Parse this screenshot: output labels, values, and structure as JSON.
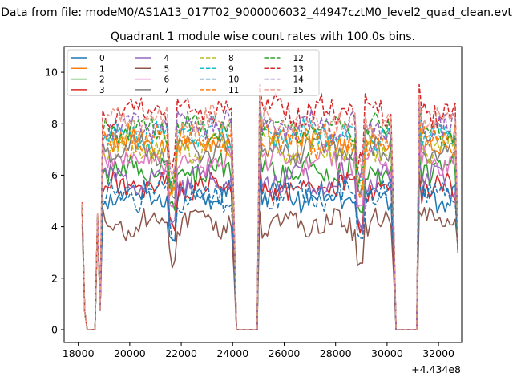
{
  "chart_data": {
    "type": "line",
    "suptitle": "Data from file: modeM0/AS1A13_017T02_9000006032_44947cztM0_level2_quad_clean.evt",
    "title": "Quadrant 1 module wise count rates with 100.0s bins.",
    "xlabel": "",
    "ylabel": "",
    "x_offset_label": "+4.434e8",
    "xlim": [
      17450,
      32900
    ],
    "ylim": [
      -0.5,
      11.0
    ],
    "x_ticks": [
      18000,
      20000,
      22000,
      24000,
      26000,
      28000,
      30000,
      32000
    ],
    "x_tick_labels": [
      "18000",
      "20000",
      "22000",
      "24000",
      "26000",
      "28000",
      "30000",
      "32000"
    ],
    "y_ticks": [
      0,
      2,
      4,
      6,
      8,
      10
    ],
    "y_tick_labels": [
      "0",
      "2",
      "4",
      "6",
      "8",
      "10"
    ],
    "grid": false,
    "legend": {
      "placement": "top-left",
      "columns": 4
    },
    "x_start": 18150,
    "x_step": 100,
    "x_end": 32750,
    "profile": {
      "ramp_start": [
        4.6,
        0.7,
        0.0,
        0.0,
        0.0,
        0.0,
        4.2,
        0.75
      ],
      "gap1": [
        24150,
        24950
      ],
      "gap2": [
        30350,
        31150
      ],
      "dip_a": 21650,
      "dip_b": 28950,
      "end_value": 3.0
    },
    "series": [
      {
        "name": "0",
        "base": 5.2,
        "color": "#1f77b4",
        "dash": "solid"
      },
      {
        "name": "1",
        "base": 7.4,
        "color": "#ff7f0e",
        "dash": "solid"
      },
      {
        "name": "2",
        "base": 6.2,
        "color": "#2ca02c",
        "dash": "solid"
      },
      {
        "name": "3",
        "base": 5.5,
        "color": "#d62728",
        "dash": "solid"
      },
      {
        "name": "4",
        "base": 5.8,
        "color": "#9467bd",
        "dash": "solid"
      },
      {
        "name": "5",
        "base": 4.1,
        "color": "#8c564b",
        "dash": "solid"
      },
      {
        "name": "6",
        "base": 6.6,
        "color": "#e377c2",
        "dash": "solid"
      },
      {
        "name": "7",
        "base": 7.0,
        "color": "#7f7f7f",
        "dash": "solid"
      },
      {
        "name": "8",
        "base": 7.1,
        "color": "#bcbd22",
        "dash": "dashed"
      },
      {
        "name": "9",
        "base": 7.6,
        "color": "#17becf",
        "dash": "dashed"
      },
      {
        "name": "10",
        "base": 5.2,
        "color": "#1f77b4",
        "dash": "dashed"
      },
      {
        "name": "11",
        "base": 7.3,
        "color": "#ff7f0e",
        "dash": "dashed"
      },
      {
        "name": "12",
        "base": 7.8,
        "color": "#2ca02c",
        "dash": "dashed"
      },
      {
        "name": "13",
        "base": 8.5,
        "color": "#d62728",
        "dash": "dashed"
      },
      {
        "name": "14",
        "base": 7.9,
        "color": "#9467bd",
        "dash": "dashed"
      },
      {
        "name": "15",
        "base": 8.1,
        "color": "#e99d8d",
        "dash": "dashed"
      }
    ]
  }
}
